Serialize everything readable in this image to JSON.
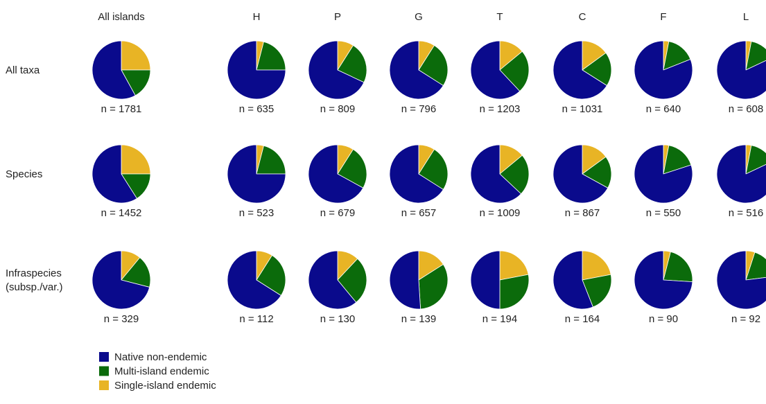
{
  "chart_data": {
    "type": "pie",
    "columns": [
      "All islands",
      "H",
      "P",
      "G",
      "T",
      "C",
      "F",
      "L"
    ],
    "rows": [
      {
        "label": [
          "All taxa"
        ],
        "n_labels": [
          "n = 1781",
          "n = 635",
          "n = 809",
          "n = 796",
          "n = 1203",
          "n = 1031",
          "n = 640",
          "n = 608"
        ]
      },
      {
        "label": [
          "Species"
        ],
        "n_labels": [
          "n = 1452",
          "n = 523",
          "n = 679",
          "n = 657",
          "n = 1009",
          "n = 867",
          "n = 550",
          "n = 516"
        ]
      },
      {
        "label": [
          "Infraspecies",
          "(subsp./var.)"
        ],
        "n_labels": [
          "n = 329",
          "n = 112",
          "n = 130",
          "n = 139",
          "n = 194",
          "n = 164",
          "n = 90",
          "n = 92"
        ]
      }
    ],
    "categories": [
      "Single-island endemic",
      "Multi-island endemic",
      "Native non-endemic"
    ],
    "slices": [
      [
        [
          0.25,
          0.17,
          0.58
        ],
        [
          0.04,
          0.21,
          0.75
        ],
        [
          0.09,
          0.23,
          0.68
        ],
        [
          0.09,
          0.25,
          0.66
        ],
        [
          0.14,
          0.24,
          0.62
        ],
        [
          0.15,
          0.19,
          0.66
        ],
        [
          0.03,
          0.16,
          0.81
        ],
        [
          0.03,
          0.15,
          0.82
        ]
      ],
      [
        [
          0.25,
          0.16,
          0.59
        ],
        [
          0.04,
          0.21,
          0.75
        ],
        [
          0.09,
          0.24,
          0.67
        ],
        [
          0.09,
          0.25,
          0.66
        ],
        [
          0.14,
          0.23,
          0.63
        ],
        [
          0.15,
          0.18,
          0.67
        ],
        [
          0.03,
          0.17,
          0.8
        ],
        [
          0.03,
          0.15,
          0.82
        ]
      ],
      [
        [
          0.11,
          0.18,
          0.71
        ],
        [
          0.09,
          0.25,
          0.66
        ],
        [
          0.12,
          0.27,
          0.61
        ],
        [
          0.16,
          0.33,
          0.51
        ],
        [
          0.22,
          0.28,
          0.5
        ],
        [
          0.22,
          0.22,
          0.56
        ],
        [
          0.04,
          0.22,
          0.74
        ],
        [
          0.05,
          0.18,
          0.77
        ]
      ]
    ],
    "legend": [
      "Native non-endemic",
      "Multi-island endemic",
      "Single-island endemic"
    ],
    "colors": {
      "Native non-endemic": "#0a0a8c",
      "Multi-island endemic": "#0b6b0b",
      "Single-island endemic": "#e8b425"
    }
  }
}
